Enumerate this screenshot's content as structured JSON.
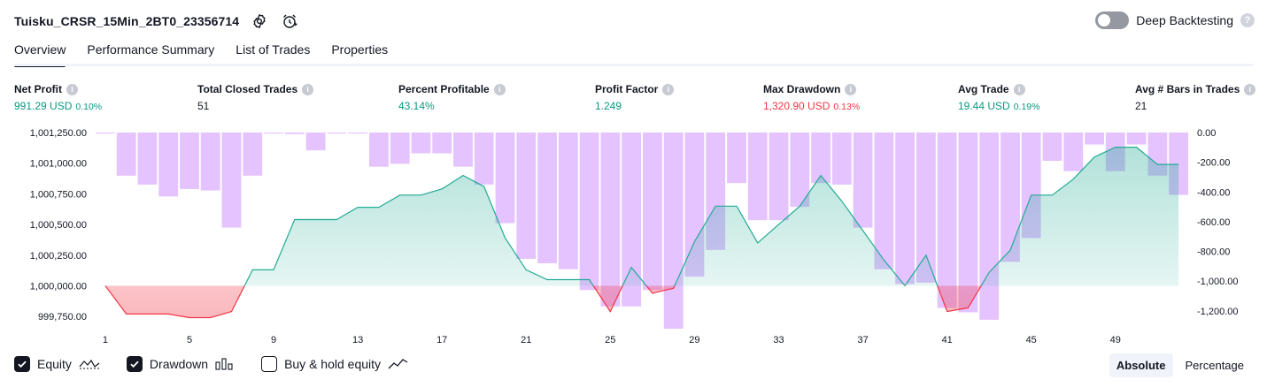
{
  "header": {
    "strategy_title": "Tuisku_CRSR_15Min_2BT0_23356714",
    "settings_icon": "gear-icon",
    "alert_icon": "alarm-clock-plus-icon"
  },
  "deep_backtesting": {
    "label": "Deep Backtesting",
    "enabled": false,
    "help": "?"
  },
  "tabs": [
    {
      "label": "Overview",
      "active": true
    },
    {
      "label": "Performance Summary",
      "active": false
    },
    {
      "label": "List of Trades",
      "active": false
    },
    {
      "label": "Properties",
      "active": false
    }
  ],
  "metrics": {
    "net_profit": {
      "label": "Net Profit",
      "value": "991.29 USD",
      "sub": "0.10%"
    },
    "total_closed_trades": {
      "label": "Total Closed Trades",
      "value": "51"
    },
    "percent_profitable": {
      "label": "Percent Profitable",
      "value": "43.14%"
    },
    "profit_factor": {
      "label": "Profit Factor",
      "value": "1.249"
    },
    "max_drawdown": {
      "label": "Max Drawdown",
      "value": "1,320.90 USD",
      "sub": "0.13%"
    },
    "avg_trade": {
      "label": "Avg Trade",
      "value": "19.44 USD",
      "sub": "0.19%"
    },
    "avg_bars": {
      "label": "Avg # Bars in Trades",
      "value": "21"
    }
  },
  "legend": {
    "equity": {
      "label": "Equity",
      "checked": true
    },
    "drawdown": {
      "label": "Drawdown",
      "checked": true
    },
    "buy_hold": {
      "label": "Buy & hold equity",
      "checked": false
    }
  },
  "scale_switch": {
    "absolute": "Absolute",
    "percentage": "Percentage",
    "selected": "Absolute"
  },
  "colors": {
    "profit": "#089981",
    "loss": "#f23645",
    "drawdown_bar": "#e1bcff",
    "equity_line_up": "#22ab94",
    "equity_line_down": "#f23645"
  },
  "chart_data": {
    "type": "area",
    "x": [
      1,
      2,
      3,
      4,
      5,
      6,
      7,
      8,
      9,
      10,
      11,
      12,
      13,
      14,
      15,
      16,
      17,
      18,
      19,
      20,
      21,
      22,
      23,
      24,
      25,
      26,
      27,
      28,
      29,
      30,
      31,
      32,
      33,
      34,
      35,
      36,
      37,
      38,
      39,
      40,
      41,
      42,
      43,
      44,
      45,
      46,
      47,
      48,
      49,
      50,
      51,
      52
    ],
    "x_ticks": [
      "1",
      "5",
      "9",
      "13",
      "17",
      "21",
      "25",
      "29",
      "33",
      "37",
      "41",
      "45",
      "49"
    ],
    "left_axis": {
      "ticks": [
        "1,001,250.00",
        "1,001,000.00",
        "1,000,750.00",
        "1,000,500.00",
        "1,000,250.00",
        "1,000,000.00",
        "999,750.00"
      ],
      "range": [
        999650,
        1001250
      ]
    },
    "right_axis": {
      "ticks": [
        "0.00",
        "-200.00",
        "-400.00",
        "-600.00",
        "-800.00",
        "-1,000.00",
        "-1,200.00"
      ],
      "range": [
        -1320,
        0
      ]
    },
    "series": [
      {
        "name": "Equity",
        "values": [
          1000000,
          999770,
          999770,
          999770,
          999740,
          999740,
          999790,
          1000130,
          1000130,
          1000540,
          1000540,
          1000540,
          1000640,
          1000640,
          1000740,
          1000740,
          1000790,
          1000900,
          1000810,
          1000390,
          1000130,
          1000050,
          1000050,
          1000050,
          999790,
          1000150,
          999940,
          999980,
          1000360,
          1000650,
          1000650,
          1000350,
          1000500,
          1000650,
          1000900,
          1000690,
          1000450,
          1000210,
          1000000,
          1000250,
          999790,
          999820,
          1000110,
          1000290,
          1000740,
          1000740,
          1000870,
          1001050,
          1001130,
          1001130,
          1000990,
          1000990
        ]
      },
      {
        "name": "Drawdown",
        "values": [
          0,
          -290,
          -350,
          -430,
          -380,
          -390,
          -640,
          -290,
          0,
          -10,
          -120,
          0,
          0,
          -230,
          -210,
          -140,
          -140,
          -230,
          -350,
          -610,
          -850,
          -880,
          -920,
          -1060,
          -1170,
          -1170,
          -1060,
          -1320,
          -970,
          -790,
          -340,
          -590,
          -590,
          -500,
          -340,
          -350,
          -640,
          -920,
          -1020,
          -1010,
          -1180,
          -1210,
          -1260,
          -870,
          -710,
          -190,
          -260,
          -80,
          -260,
          -80,
          -290,
          -420
        ]
      }
    ]
  }
}
